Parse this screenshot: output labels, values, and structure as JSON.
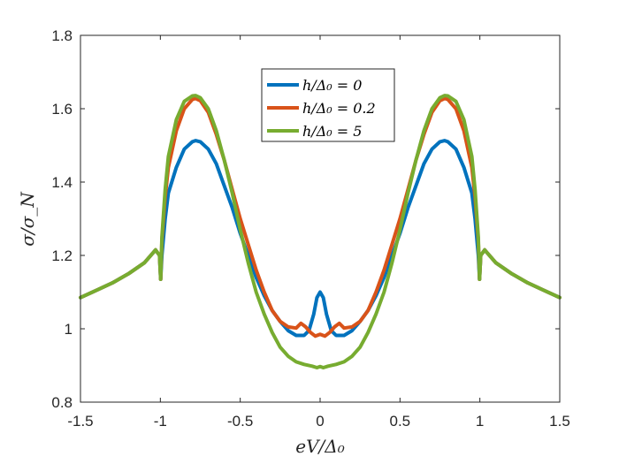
{
  "chart_data": {
    "type": "line",
    "xlabel": "eV/Δ₀",
    "ylabel": "σ/σ_N",
    "xlim": [
      -1.5,
      1.5
    ],
    "ylim": [
      0.8,
      1.8
    ],
    "xticks": [
      -1.5,
      -1,
      -0.5,
      0,
      0.5,
      1,
      1.5
    ],
    "xtick_labels": [
      "-1.5",
      "-1",
      "-0.5",
      "0",
      "0.5",
      "1",
      "1.5"
    ],
    "yticks": [
      0.8,
      1,
      1.2,
      1.4,
      1.6,
      1.8
    ],
    "ytick_labels": [
      "0.8",
      "1",
      "1.2",
      "1.4",
      "1.6",
      "1.8"
    ],
    "grid": false,
    "legend_position": "top-center",
    "series": [
      {
        "name": "h/Δ₀ = 0",
        "color": "#0072BD",
        "points": [
          [
            -1.5,
            1.085
          ],
          [
            -1.4,
            1.105
          ],
          [
            -1.3,
            1.125
          ],
          [
            -1.2,
            1.15
          ],
          [
            -1.1,
            1.18
          ],
          [
            -1.03,
            1.215
          ],
          [
            -1.005,
            1.2
          ],
          [
            -0.998,
            1.135
          ],
          [
            -0.99,
            1.2
          ],
          [
            -0.97,
            1.3
          ],
          [
            -0.95,
            1.37
          ],
          [
            -0.9,
            1.44
          ],
          [
            -0.85,
            1.49
          ],
          [
            -0.8,
            1.51
          ],
          [
            -0.78,
            1.513
          ],
          [
            -0.75,
            1.51
          ],
          [
            -0.7,
            1.49
          ],
          [
            -0.65,
            1.45
          ],
          [
            -0.6,
            1.39
          ],
          [
            -0.55,
            1.33
          ],
          [
            -0.5,
            1.26
          ],
          [
            -0.45,
            1.2
          ],
          [
            -0.4,
            1.14
          ],
          [
            -0.35,
            1.09
          ],
          [
            -0.3,
            1.05
          ],
          [
            -0.25,
            1.02
          ],
          [
            -0.2,
            0.995
          ],
          [
            -0.15,
            0.982
          ],
          [
            -0.1,
            0.982
          ],
          [
            -0.07,
            0.995
          ],
          [
            -0.04,
            1.04
          ],
          [
            -0.02,
            1.085
          ],
          [
            0,
            1.1
          ],
          [
            0.02,
            1.085
          ],
          [
            0.04,
            1.04
          ],
          [
            0.07,
            0.995
          ],
          [
            0.1,
            0.982
          ],
          [
            0.15,
            0.982
          ],
          [
            0.2,
            0.995
          ],
          [
            0.25,
            1.02
          ],
          [
            0.3,
            1.05
          ],
          [
            0.35,
            1.09
          ],
          [
            0.4,
            1.14
          ],
          [
            0.45,
            1.2
          ],
          [
            0.5,
            1.26
          ],
          [
            0.55,
            1.33
          ],
          [
            0.6,
            1.39
          ],
          [
            0.65,
            1.45
          ],
          [
            0.7,
            1.49
          ],
          [
            0.75,
            1.51
          ],
          [
            0.78,
            1.513
          ],
          [
            0.8,
            1.51
          ],
          [
            0.85,
            1.49
          ],
          [
            0.9,
            1.44
          ],
          [
            0.95,
            1.37
          ],
          [
            0.97,
            1.3
          ],
          [
            0.99,
            1.2
          ],
          [
            0.998,
            1.135
          ],
          [
            1.005,
            1.2
          ],
          [
            1.03,
            1.215
          ],
          [
            1.1,
            1.18
          ],
          [
            1.2,
            1.15
          ],
          [
            1.3,
            1.125
          ],
          [
            1.4,
            1.105
          ],
          [
            1.5,
            1.085
          ]
        ]
      },
      {
        "name": "h/Δ₀ = 0.2",
        "color": "#D95319",
        "points": [
          [
            -1.5,
            1.085
          ],
          [
            -1.4,
            1.105
          ],
          [
            -1.3,
            1.125
          ],
          [
            -1.2,
            1.15
          ],
          [
            -1.1,
            1.18
          ],
          [
            -1.03,
            1.215
          ],
          [
            -1.005,
            1.2
          ],
          [
            -0.998,
            1.135
          ],
          [
            -0.99,
            1.24
          ],
          [
            -0.97,
            1.36
          ],
          [
            -0.95,
            1.44
          ],
          [
            -0.9,
            1.54
          ],
          [
            -0.85,
            1.6
          ],
          [
            -0.8,
            1.625
          ],
          [
            -0.78,
            1.628
          ],
          [
            -0.75,
            1.622
          ],
          [
            -0.7,
            1.59
          ],
          [
            -0.65,
            1.53
          ],
          [
            -0.6,
            1.46
          ],
          [
            -0.55,
            1.38
          ],
          [
            -0.5,
            1.3
          ],
          [
            -0.45,
            1.23
          ],
          [
            -0.4,
            1.16
          ],
          [
            -0.35,
            1.1
          ],
          [
            -0.3,
            1.05
          ],
          [
            -0.25,
            1.02
          ],
          [
            -0.2,
            1.005
          ],
          [
            -0.15,
            1.002
          ],
          [
            -0.12,
            1.015
          ],
          [
            -0.09,
            1.005
          ],
          [
            -0.06,
            0.99
          ],
          [
            -0.03,
            0.98
          ],
          [
            0,
            0.985
          ],
          [
            0.03,
            0.98
          ],
          [
            0.06,
            0.99
          ],
          [
            0.09,
            1.005
          ],
          [
            0.12,
            1.015
          ],
          [
            0.15,
            1.002
          ],
          [
            0.2,
            1.005
          ],
          [
            0.25,
            1.02
          ],
          [
            0.3,
            1.05
          ],
          [
            0.35,
            1.1
          ],
          [
            0.4,
            1.16
          ],
          [
            0.45,
            1.23
          ],
          [
            0.5,
            1.3
          ],
          [
            0.55,
            1.38
          ],
          [
            0.6,
            1.46
          ],
          [
            0.65,
            1.53
          ],
          [
            0.7,
            1.59
          ],
          [
            0.75,
            1.622
          ],
          [
            0.78,
            1.628
          ],
          [
            0.8,
            1.625
          ],
          [
            0.85,
            1.6
          ],
          [
            0.9,
            1.54
          ],
          [
            0.95,
            1.44
          ],
          [
            0.97,
            1.36
          ],
          [
            0.99,
            1.24
          ],
          [
            0.998,
            1.135
          ],
          [
            1.005,
            1.2
          ],
          [
            1.03,
            1.215
          ],
          [
            1.1,
            1.18
          ],
          [
            1.2,
            1.15
          ],
          [
            1.3,
            1.125
          ],
          [
            1.4,
            1.105
          ],
          [
            1.5,
            1.085
          ]
        ]
      },
      {
        "name": "h/Δ₀ = 5",
        "color": "#77AC30",
        "points": [
          [
            -1.5,
            1.085
          ],
          [
            -1.4,
            1.105
          ],
          [
            -1.3,
            1.125
          ],
          [
            -1.2,
            1.15
          ],
          [
            -1.1,
            1.18
          ],
          [
            -1.03,
            1.215
          ],
          [
            -1.005,
            1.2
          ],
          [
            -0.998,
            1.135
          ],
          [
            -0.99,
            1.25
          ],
          [
            -0.97,
            1.38
          ],
          [
            -0.95,
            1.47
          ],
          [
            -0.9,
            1.57
          ],
          [
            -0.85,
            1.62
          ],
          [
            -0.8,
            1.635
          ],
          [
            -0.78,
            1.636
          ],
          [
            -0.75,
            1.63
          ],
          [
            -0.7,
            1.6
          ],
          [
            -0.65,
            1.54
          ],
          [
            -0.6,
            1.46
          ],
          [
            -0.55,
            1.37
          ],
          [
            -0.5,
            1.27
          ],
          [
            -0.45,
            1.18
          ],
          [
            -0.4,
            1.1
          ],
          [
            -0.35,
            1.04
          ],
          [
            -0.3,
            0.99
          ],
          [
            -0.25,
            0.95
          ],
          [
            -0.2,
            0.925
          ],
          [
            -0.15,
            0.91
          ],
          [
            -0.1,
            0.903
          ],
          [
            -0.05,
            0.898
          ],
          [
            -0.02,
            0.894
          ],
          [
            0,
            0.897
          ],
          [
            0.02,
            0.894
          ],
          [
            0.05,
            0.898
          ],
          [
            0.1,
            0.903
          ],
          [
            0.15,
            0.91
          ],
          [
            0.2,
            0.925
          ],
          [
            0.25,
            0.95
          ],
          [
            0.3,
            0.99
          ],
          [
            0.35,
            1.04
          ],
          [
            0.4,
            1.1
          ],
          [
            0.45,
            1.18
          ],
          [
            0.5,
            1.27
          ],
          [
            0.55,
            1.37
          ],
          [
            0.6,
            1.46
          ],
          [
            0.65,
            1.54
          ],
          [
            0.7,
            1.6
          ],
          [
            0.75,
            1.63
          ],
          [
            0.78,
            1.636
          ],
          [
            0.8,
            1.635
          ],
          [
            0.85,
            1.62
          ],
          [
            0.9,
            1.57
          ],
          [
            0.95,
            1.47
          ],
          [
            0.97,
            1.38
          ],
          [
            0.99,
            1.25
          ],
          [
            0.998,
            1.135
          ],
          [
            1.005,
            1.2
          ],
          [
            1.03,
            1.215
          ],
          [
            1.1,
            1.18
          ],
          [
            1.2,
            1.15
          ],
          [
            1.3,
            1.125
          ],
          [
            1.4,
            1.105
          ],
          [
            1.5,
            1.085
          ]
        ]
      }
    ]
  }
}
